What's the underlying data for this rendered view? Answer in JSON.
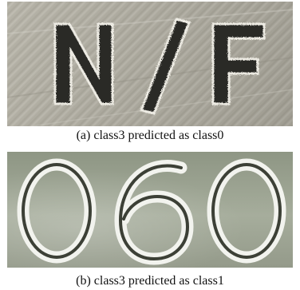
{
  "panels": [
    {
      "caption": "(a) class3 predicted as class0",
      "image_text": "N/F"
    },
    {
      "caption": "(b) class3 predicted as class1",
      "image_text": "060"
    }
  ]
}
